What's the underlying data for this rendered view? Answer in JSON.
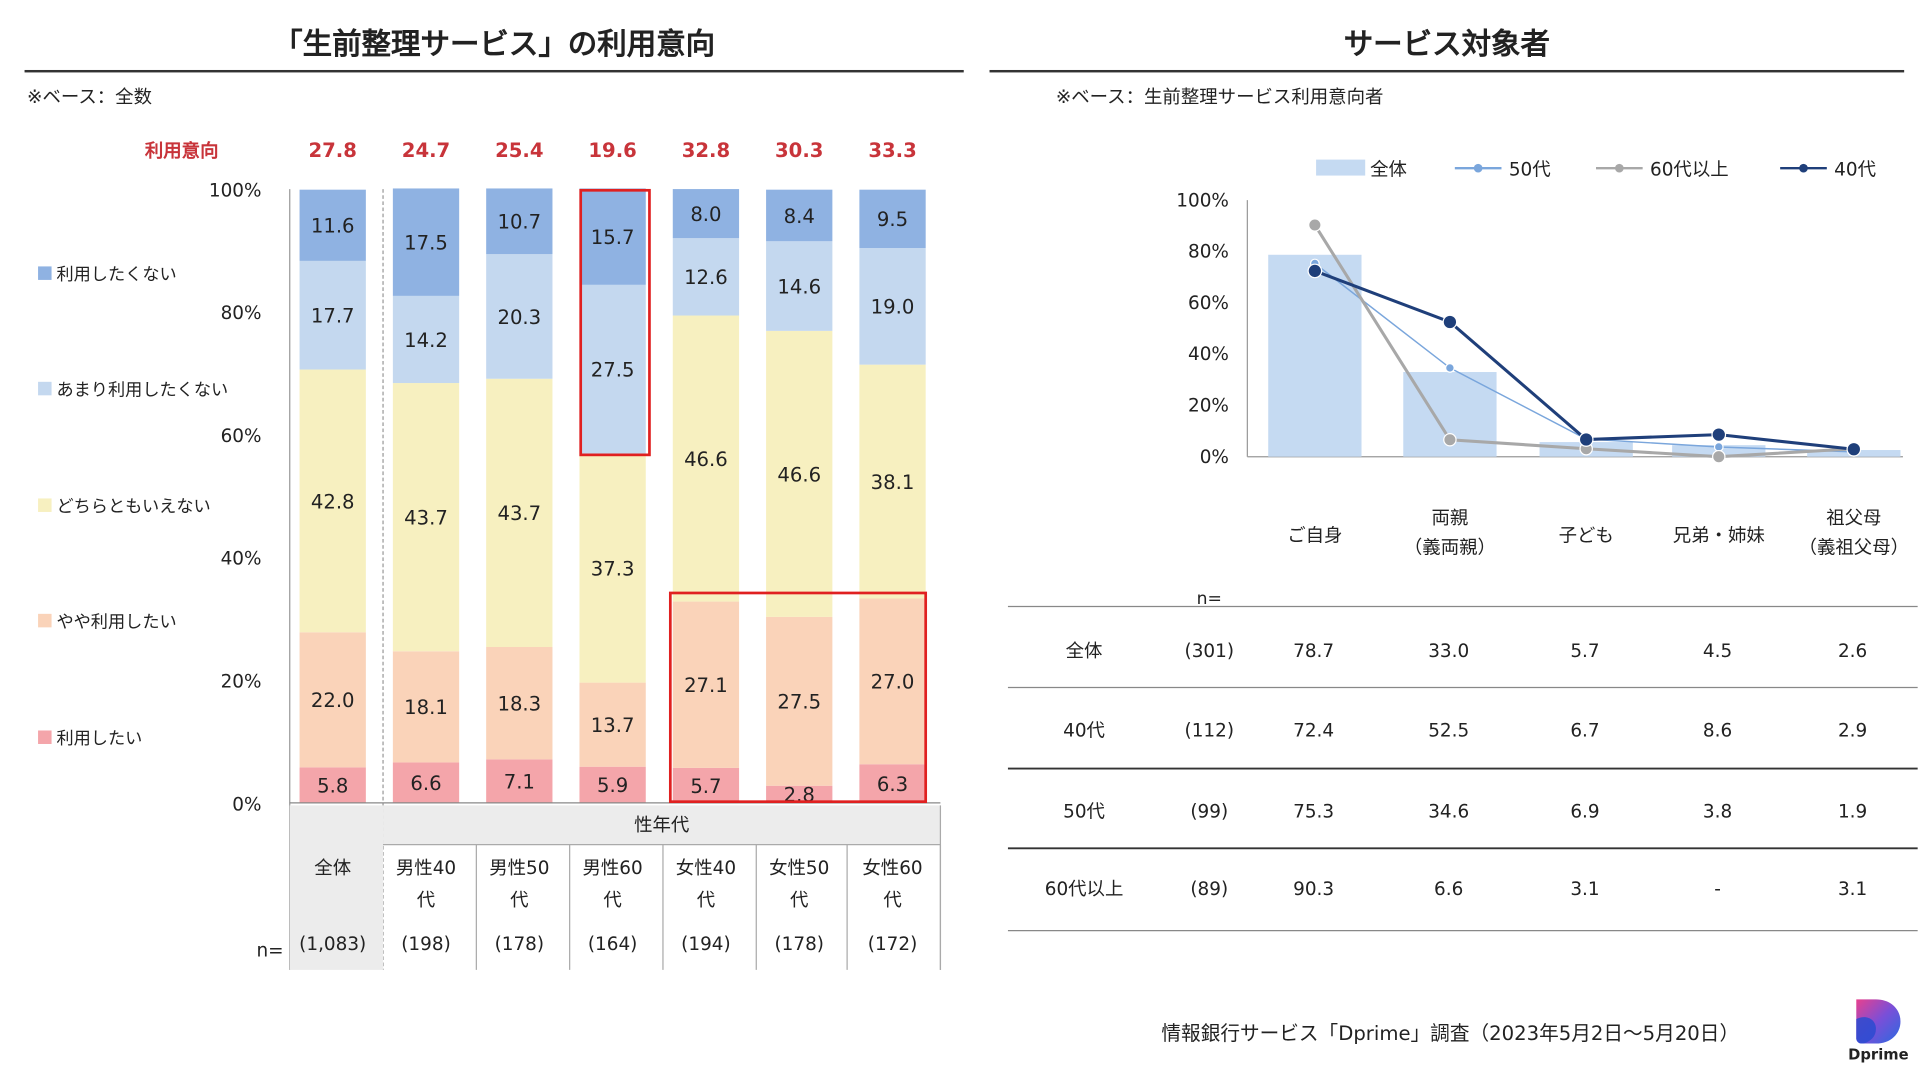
{
  "left": {
    "title": "「生前整理サービス」の利用意向",
    "base_note": "※ベース：全数",
    "intent_label": "利用意向",
    "intent_values": [
      "27.8",
      "24.7",
      "25.4",
      "19.6",
      "32.8",
      "30.3",
      "33.3"
    ],
    "group_header": "性年代",
    "n_prefix": "n=",
    "columns": [
      {
        "label": "全体",
        "n": "(1,083)"
      },
      {
        "label": "男性40代",
        "n": "(198)"
      },
      {
        "label": "男性50代",
        "n": "(178)"
      },
      {
        "label": "男性60代",
        "n": "(164)"
      },
      {
        "label": "女性40代",
        "n": "(194)"
      },
      {
        "label": "女性50代",
        "n": "(178)"
      },
      {
        "label": "女性60代",
        "n": "(172)"
      }
    ],
    "legend": [
      "利用したくない",
      "あまり利用したくない",
      "どちらともいえない",
      "やや利用したい",
      "利用したい"
    ]
  },
  "right": {
    "title": "サービス対象者",
    "base_note": "※ベース：生前整理サービス利用意向者",
    "legend": [
      "全体",
      "50代",
      "60代以上",
      "40代"
    ],
    "categories": [
      "ご自身",
      "両親\n（義両親）",
      "子ども",
      "兄弟・姉妹",
      "祖父母\n（義祖父母）"
    ],
    "n_header": "n=",
    "table": [
      {
        "label": "全体",
        "n": "(301)",
        "values": [
          "78.7",
          "33.0",
          "5.7",
          "4.5",
          "2.6"
        ]
      },
      {
        "label": "40代",
        "n": "(112)",
        "values": [
          "72.4",
          "52.5",
          "6.7",
          "8.6",
          "2.9"
        ]
      },
      {
        "label": "50代",
        "n": "(99)",
        "values": [
          "75.3",
          "34.6",
          "6.9",
          "3.8",
          "1.9"
        ]
      },
      {
        "label": "60代以上",
        "n": "(89)",
        "values": [
          "90.3",
          "6.6",
          "3.1",
          "-",
          "3.1"
        ]
      }
    ]
  },
  "footer": "情報銀行サービス「Dprime」調査（2023年5月2日〜5月20日）",
  "logo_text": "Dprime",
  "chart_data": [
    {
      "type": "bar",
      "title": "「生前整理サービス」の利用意向",
      "stacked": true,
      "categories": [
        "全体",
        "男性40代",
        "男性50代",
        "男性60代",
        "女性40代",
        "女性50代",
        "女性60代"
      ],
      "ylim": [
        0,
        100
      ],
      "yticks": [
        "0%",
        "20%",
        "40%",
        "60%",
        "80%",
        "100%"
      ],
      "series": [
        {
          "name": "利用したい",
          "color": "#f4a5aa",
          "values": [
            5.8,
            6.6,
            7.1,
            5.9,
            5.7,
            2.8,
            6.3
          ]
        },
        {
          "name": "やや利用したい",
          "color": "#fad3b9",
          "values": [
            22.0,
            18.1,
            18.3,
            13.7,
            27.1,
            27.5,
            27.0
          ]
        },
        {
          "name": "どちらともいえない",
          "color": "#f7f0c0",
          "values": [
            42.8,
            43.7,
            43.7,
            37.3,
            46.6,
            46.6,
            38.1
          ]
        },
        {
          "name": "あまり利用したくない",
          "color": "#c4d8ef",
          "values": [
            17.7,
            14.2,
            20.3,
            27.5,
            12.6,
            14.6,
            19.0
          ]
        },
        {
          "name": "利用したくない",
          "color": "#8fb2e2",
          "values": [
            11.6,
            17.5,
            10.7,
            15.7,
            8.0,
            8.4,
            9.5
          ]
        }
      ],
      "highlight_color": "#e02020"
    },
    {
      "type": "line",
      "title": "サービス対象者",
      "categories": [
        "ご自身",
        "両親（義両親）",
        "子ども",
        "兄弟・姉妹",
        "祖父母（義祖父母）"
      ],
      "ylim": [
        0,
        100
      ],
      "yticks": [
        "0%",
        "20%",
        "40%",
        "60%",
        "80%",
        "100%"
      ],
      "series": [
        {
          "name": "全体",
          "kind": "bar",
          "color": "#c5daf2",
          "values": [
            78.7,
            33.0,
            5.7,
            4.5,
            2.6
          ]
        },
        {
          "name": "50代",
          "kind": "line",
          "color": "#7aa6dc",
          "values": [
            75.3,
            34.6,
            6.9,
            3.8,
            1.9
          ]
        },
        {
          "name": "60代以上",
          "kind": "line",
          "color": "#a8a8a8",
          "values": [
            90.3,
            6.6,
            3.1,
            0,
            3.1
          ]
        },
        {
          "name": "40代",
          "kind": "line",
          "color": "#1f3f7a",
          "values": [
            72.4,
            52.5,
            6.7,
            8.6,
            2.9
          ]
        }
      ]
    }
  ]
}
